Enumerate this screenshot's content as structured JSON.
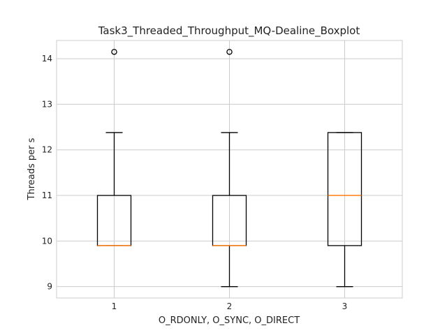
{
  "chart_data": {
    "type": "boxplot",
    "title": "Task3_Threaded_Throughput_MQ-Dealine_Boxplot",
    "xlabel": "O_RDONLY, O_SYNC, O_DIRECT",
    "ylabel": "Threads per s",
    "categories": [
      "1",
      "2",
      "3"
    ],
    "ylim": [
      8.75,
      14.4
    ],
    "yticks": [
      9,
      10,
      11,
      12,
      13,
      14
    ],
    "grid": true,
    "boxes": [
      {
        "whisker_low": 9.9,
        "q1": 9.9,
        "median": 9.9,
        "q3": 11.0,
        "whisker_high": 12.38,
        "outliers": [
          14.15
        ]
      },
      {
        "whisker_low": 9.0,
        "q1": 9.9,
        "median": 9.9,
        "q3": 11.0,
        "whisker_high": 12.38,
        "outliers": [
          14.15
        ]
      },
      {
        "whisker_low": 9.0,
        "q1": 9.9,
        "median": 11.0,
        "q3": 12.38,
        "whisker_high": 12.38,
        "outliers": []
      }
    ],
    "colors": {
      "box": "#000000",
      "median": "#ff7f0e",
      "grid": "#cccccc",
      "frame": "#cccccc"
    }
  }
}
